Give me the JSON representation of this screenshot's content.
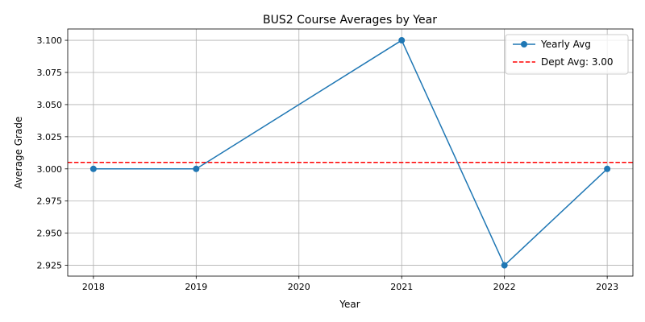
{
  "chart_data": {
    "type": "line",
    "title": "BUS2 Course Averages by Year",
    "xlabel": "Year",
    "ylabel": "Average Grade",
    "x": [
      2018,
      2019,
      2021,
      2022,
      2023
    ],
    "x_ticks": [
      "2018",
      "2019",
      "2020",
      "2021",
      "2022",
      "2023"
    ],
    "xlim": [
      2017.75,
      2023.25
    ],
    "ylim": [
      2.9166,
      3.1088
    ],
    "y_ticks": [
      "2.925",
      "2.950",
      "2.975",
      "3.000",
      "3.025",
      "3.050",
      "3.075",
      "3.100"
    ],
    "grid": true,
    "legend_position": "top-right",
    "series": [
      {
        "name": "Yearly Avg",
        "x": [
          2018,
          2019,
          2021,
          2022,
          2023
        ],
        "values": [
          3.0,
          3.0,
          3.1,
          2.925,
          3.0
        ],
        "color": "#1f77b4",
        "marker": "circle",
        "style": "solid"
      }
    ],
    "reference_line": {
      "label": "Dept Avg: 3.00",
      "value": 3.005,
      "color": "#ff0000",
      "style": "dashed"
    }
  }
}
